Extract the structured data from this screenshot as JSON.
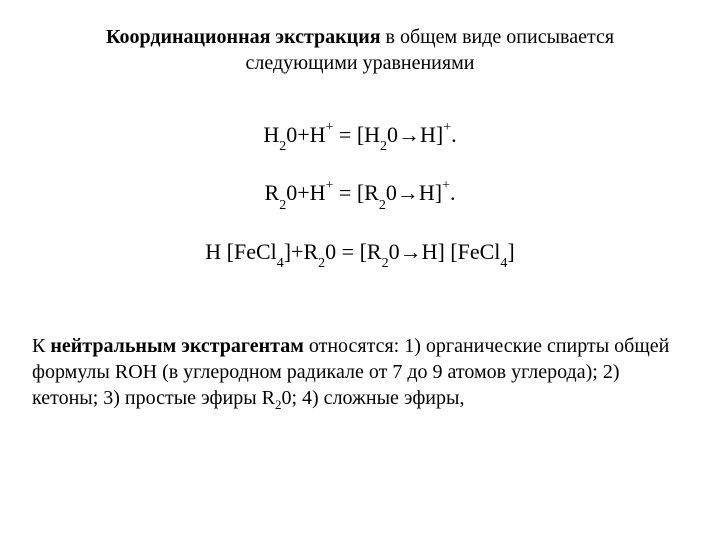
{
  "title": {
    "bold_part": "Координационная экстракция",
    "rest_line1": " в общем виде описывается",
    "line2": "следующими уравнениями"
  },
  "equations": {
    "eq1": {
      "pre": "H",
      "sub1": "2",
      "mid1": "0+H",
      "sup1": "+",
      "mid2": " = [H",
      "sub2": "2",
      "mid3": "0→H]",
      "sup2": "+",
      "post": "."
    },
    "eq2": {
      "pre": "R",
      "sub1": "2",
      "mid1": "0+H",
      "sup1": "+",
      "mid2": "  = [R",
      "sub2": "2",
      "mid3": "0→H]",
      "sup2": "+",
      "post": "."
    },
    "eq3": {
      "p1": "H [FeCl",
      "s1": "4",
      "p2": "]+R",
      "s2": "2",
      "p3": "0 = [R",
      "s3": "2",
      "p4": "0→H] [FeCl",
      "s4": "4",
      "p5": "]"
    }
  },
  "paragraph": {
    "pre": "К ",
    "bold": "нейтральным экстрагентам",
    "text1": " относятся: 1) органические спирты общей формулы ROH (в углеродном радикале от 7 до 9 атомов углерода); 2) кетоны; 3) простые эфиры R",
    "sub": "2",
    "text2": "0; 4) сложные эфиры,"
  },
  "colors": {
    "background": "#ffffff",
    "text": "#000000"
  },
  "typography": {
    "title_fontsize": 20,
    "equation_fontsize": 22,
    "paragraph_fontsize": 20,
    "font_family": "Times New Roman"
  }
}
